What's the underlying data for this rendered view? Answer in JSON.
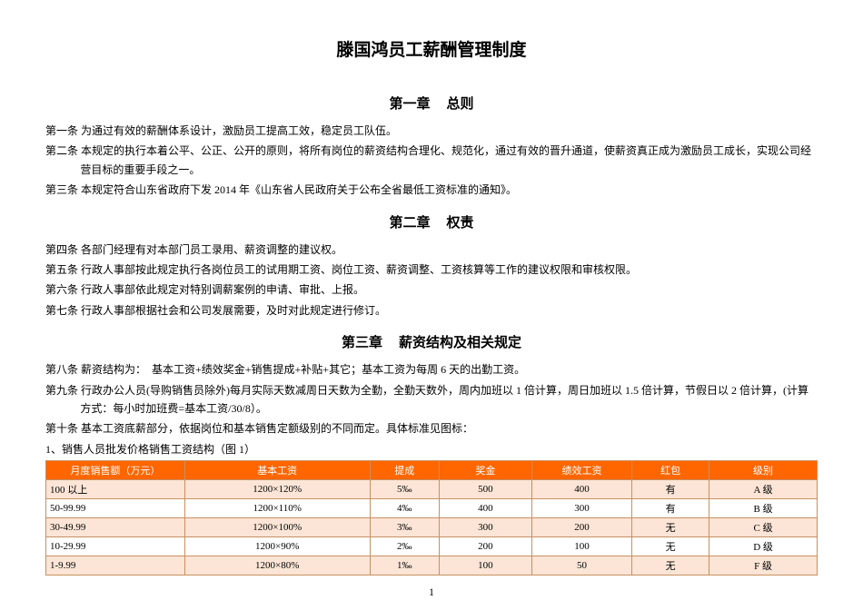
{
  "doc_title": "滕国鸿员工薪酬管理制度",
  "page_number": "1",
  "chapters": {
    "ch1": {
      "label_a": "第一章",
      "label_b": "总则"
    },
    "ch2": {
      "label_a": "第二章",
      "label_b": "权责"
    },
    "ch3": {
      "label_a": "第三章",
      "label_b": "薪资结构及相关规定"
    }
  },
  "articles": {
    "a1": "第一条 为通过有效的薪酬体系设计，激励员工提高工效，稳定员工队伍。",
    "a2": "第二条 本规定的执行本着公平、公正、公开的原则，将所有岗位的薪资结构合理化、规范化，通过有效的晋升通道，使薪资真正成为激励员工成长，实现公司经营目标的重要手段之一。",
    "a3": "第三条 本规定符合山东省政府下发 2014 年《山东省人民政府关于公布全省最低工资标准的通知》。",
    "a4": "第四条 各部门经理有对本部门员工录用、薪资调整的建议权。",
    "a5": "第五条 行政人事部按此规定执行各岗位员工的试用期工资、岗位工资、薪资调整、工资核算等工作的建议权限和审核权限。",
    "a6": "第六条 行政人事部依此规定对特别调薪案例的申请、审批、上报。",
    "a7": "第七条 行政人事部根据社会和公司发展需要，及时对此规定进行修订。",
    "a8": "第八条 薪资结构为：　基本工资+绩效奖金+销售提成+补贴+其它；基本工资为每周 6 天的出勤工资。",
    "a9": "第九条 行政办公人员(导购销售员除外)每月实际天数减周日天数为全勤，全勤天数外，周内加班以 1 倍计算，周日加班以 1.5 倍计算，节假日以 2 倍计算，(计算方式：每小时加班费=基本工资/30/8）。",
    "a10": "第十条 基本工资底薪部分，依据岗位和基本销售定额级别的不同而定。具体标准见图标："
  },
  "table_intro": "1、销售人员批发价格销售工资结构（图 1）",
  "table": {
    "headers": [
      "月度销售额（万元）",
      "基本工资",
      "提成",
      "奖金",
      "绩效工资",
      "红包",
      "级别"
    ],
    "col_widths": [
      "18%",
      "24%",
      "9%",
      "12%",
      "13%",
      "10%",
      "14%"
    ],
    "header_bg": "#ff6600",
    "header_fg": "#ffffff",
    "row_alt_bg": "#fce5d6",
    "row_norm_bg": "#ffffff",
    "border_color": "#c89060",
    "rows": [
      {
        "alt": true,
        "cells": [
          "100 以上",
          "1200×120%",
          "5‰",
          "500",
          "400",
          "有",
          "A 级"
        ]
      },
      {
        "alt": false,
        "cells": [
          "50-99.99",
          "1200×110%",
          "4‰",
          "400",
          "300",
          "有",
          "B 级"
        ]
      },
      {
        "alt": true,
        "cells": [
          "30-49.99",
          "1200×100%",
          "3‰",
          "300",
          "200",
          "无",
          "C 级"
        ]
      },
      {
        "alt": false,
        "cells": [
          "10-29.99",
          "1200×90%",
          "2‰",
          "200",
          "100",
          "无",
          "D 级"
        ]
      },
      {
        "alt": true,
        "cells": [
          "1-9.99",
          "1200×80%",
          "1‰",
          "100",
          "50",
          "无",
          "F 级"
        ]
      }
    ]
  }
}
